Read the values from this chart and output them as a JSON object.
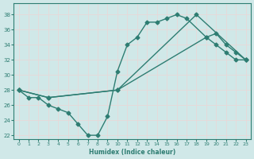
{
  "xlabel": "Humidex (Indice chaleur)",
  "bg_color": "#d0e8e8",
  "grid_color": "#c0d8d8",
  "line_color": "#2e7d72",
  "xlim": [
    -0.5,
    23.5
  ],
  "ylim": [
    21.5,
    39.5
  ],
  "xticks": [
    0,
    1,
    2,
    3,
    4,
    5,
    6,
    7,
    8,
    9,
    10,
    11,
    12,
    13,
    14,
    15,
    16,
    17,
    18,
    19,
    20,
    21,
    22,
    23
  ],
  "yticks": [
    22,
    24,
    26,
    28,
    30,
    32,
    34,
    36,
    38
  ],
  "line1_x": [
    0,
    1,
    2,
    3,
    4,
    5,
    6,
    7,
    8,
    9,
    10,
    11,
    12,
    13,
    14,
    15,
    16,
    17,
    19,
    20,
    21,
    22,
    23
  ],
  "line1_y": [
    28,
    27,
    27,
    26,
    25.5,
    25,
    23.5,
    22,
    22,
    24.5,
    30.5,
    34,
    35,
    37,
    37,
    37.5,
    38,
    37.5,
    35,
    34,
    33,
    32,
    32
  ],
  "line2_x": [
    0,
    3,
    10,
    18,
    23
  ],
  "line2_y": [
    28,
    27,
    28,
    38,
    32
  ],
  "line3_x": [
    0,
    3,
    10,
    19,
    20,
    21,
    22,
    23
  ],
  "line3_y": [
    28,
    27,
    28,
    35,
    35.5,
    34,
    33,
    32
  ]
}
